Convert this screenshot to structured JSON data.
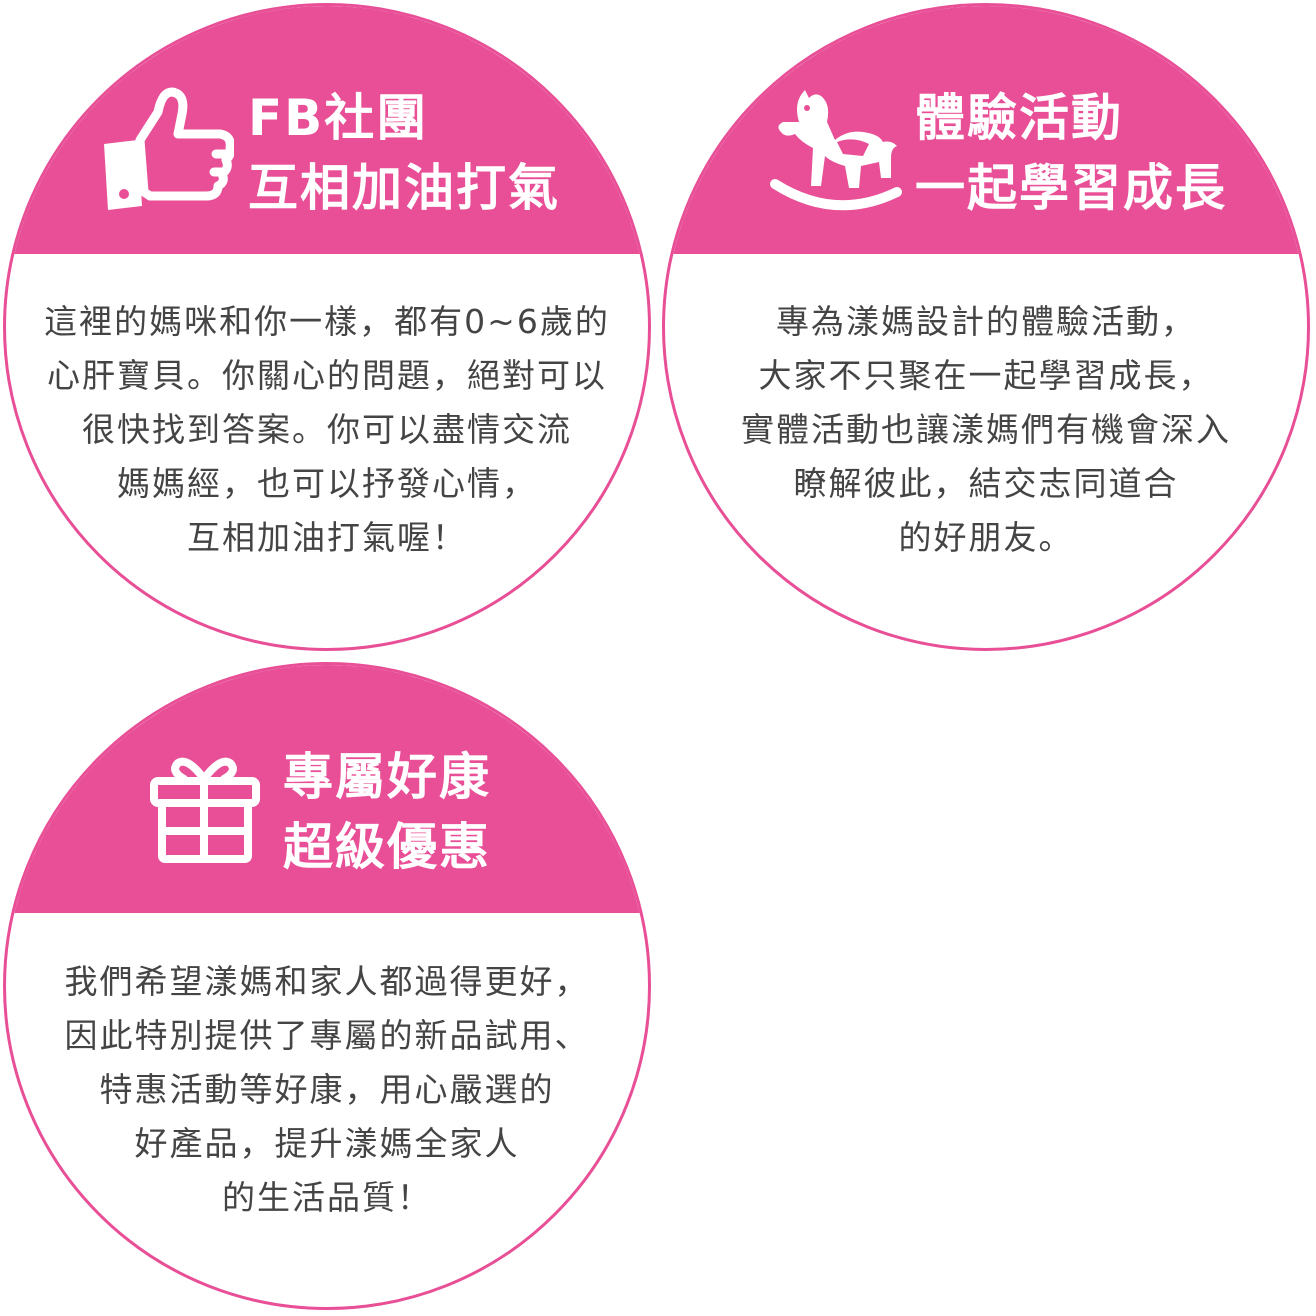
{
  "colors": {
    "accent": "#e84f96",
    "border": "#e84f96",
    "body_text": "#444444",
    "title_text": "#ffffff"
  },
  "cards": [
    {
      "icon": "thumbs-up-icon",
      "title_lines": [
        "FB社團",
        "互相加油打氣"
      ],
      "body_lines": [
        "這裡的媽咪和你一樣，都有0~6歲的",
        "心肝寶貝。你關心的問題，絕對可以",
        "很快找到答案。你可以盡情交流",
        "媽媽經，也可以抒發心情，",
        "互相加油打氣喔！"
      ]
    },
    {
      "icon": "rocking-horse-icon",
      "title_lines": [
        "體驗活動",
        "一起學習成長"
      ],
      "body_lines": [
        "專為漾媽設計的體驗活動，",
        "大家不只聚在一起學習成長，",
        "實體活動也讓漾媽們有機會深入",
        "瞭解彼此，結交志同道合",
        "的好朋友。"
      ]
    },
    {
      "icon": "gift-icon",
      "title_lines": [
        "專屬好康",
        "超級優惠"
      ],
      "body_lines": [
        "我們希望漾媽和家人都過得更好，",
        "因此特別提供了專屬的新品試用、",
        "特惠活動等好康，用心嚴選的",
        "好產品，提升漾媽全家人",
        "的生活品質！"
      ]
    }
  ]
}
